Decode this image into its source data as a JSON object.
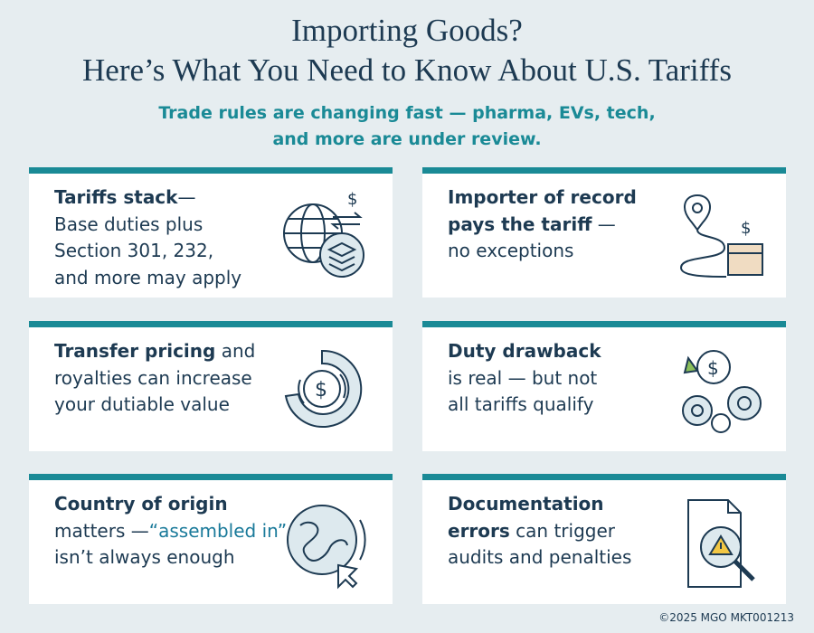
{
  "header": {
    "title": [
      "Importing Goods?",
      "Here’s What You Need to Know About U.S. Tariffs"
    ],
    "subtitle": [
      "Trade rules are changing fast — pharma, EVs, tech,",
      "and more are under review."
    ]
  },
  "cards": [
    {
      "lines": [
        [
          {
            "text": "Tariffs stack",
            "bold": true
          },
          {
            "text": "—"
          }
        ],
        [
          {
            "text": "Base duties plus"
          }
        ],
        [
          {
            "text": "Section 301, 232,"
          }
        ],
        [
          {
            "text": "and more may apply"
          }
        ]
      ]
    },
    {
      "lines": [
        [
          {
            "text": "Importer of record",
            "bold": true
          }
        ],
        [
          {
            "text": "pays the tariff",
            "bold": true
          },
          {
            "text": " —"
          }
        ],
        [
          {
            "text": "no exceptions"
          }
        ]
      ]
    },
    {
      "lines": [
        [
          {
            "text": "Transfer pricing",
            "bold": true
          },
          {
            "text": " and"
          }
        ],
        [
          {
            "text": "royalties can increase"
          }
        ],
        [
          {
            "text": "your dutiable value"
          }
        ]
      ]
    },
    {
      "lines": [
        [
          {
            "text": "Duty drawback",
            "bold": true
          }
        ],
        [
          {
            "text": "is real — but not"
          }
        ],
        [
          {
            "text": "all tariffs qualify"
          }
        ]
      ]
    },
    {
      "lines": [
        [
          {
            "text": "Country of origin",
            "bold": true
          }
        ],
        [
          {
            "text": "matters —"
          },
          {
            "text": "“assembled in”",
            "accent": true
          }
        ],
        [
          {
            "text": "isn’t always enough"
          }
        ]
      ]
    },
    {
      "lines": [
        [
          {
            "text": "Documentation",
            "bold": true
          }
        ],
        [
          {
            "text": "errors",
            "bold": true
          },
          {
            "text": " can trigger"
          }
        ],
        [
          {
            "text": "audits and penalties"
          }
        ]
      ]
    }
  ],
  "footer": "©2025 MGO MKT001213"
}
